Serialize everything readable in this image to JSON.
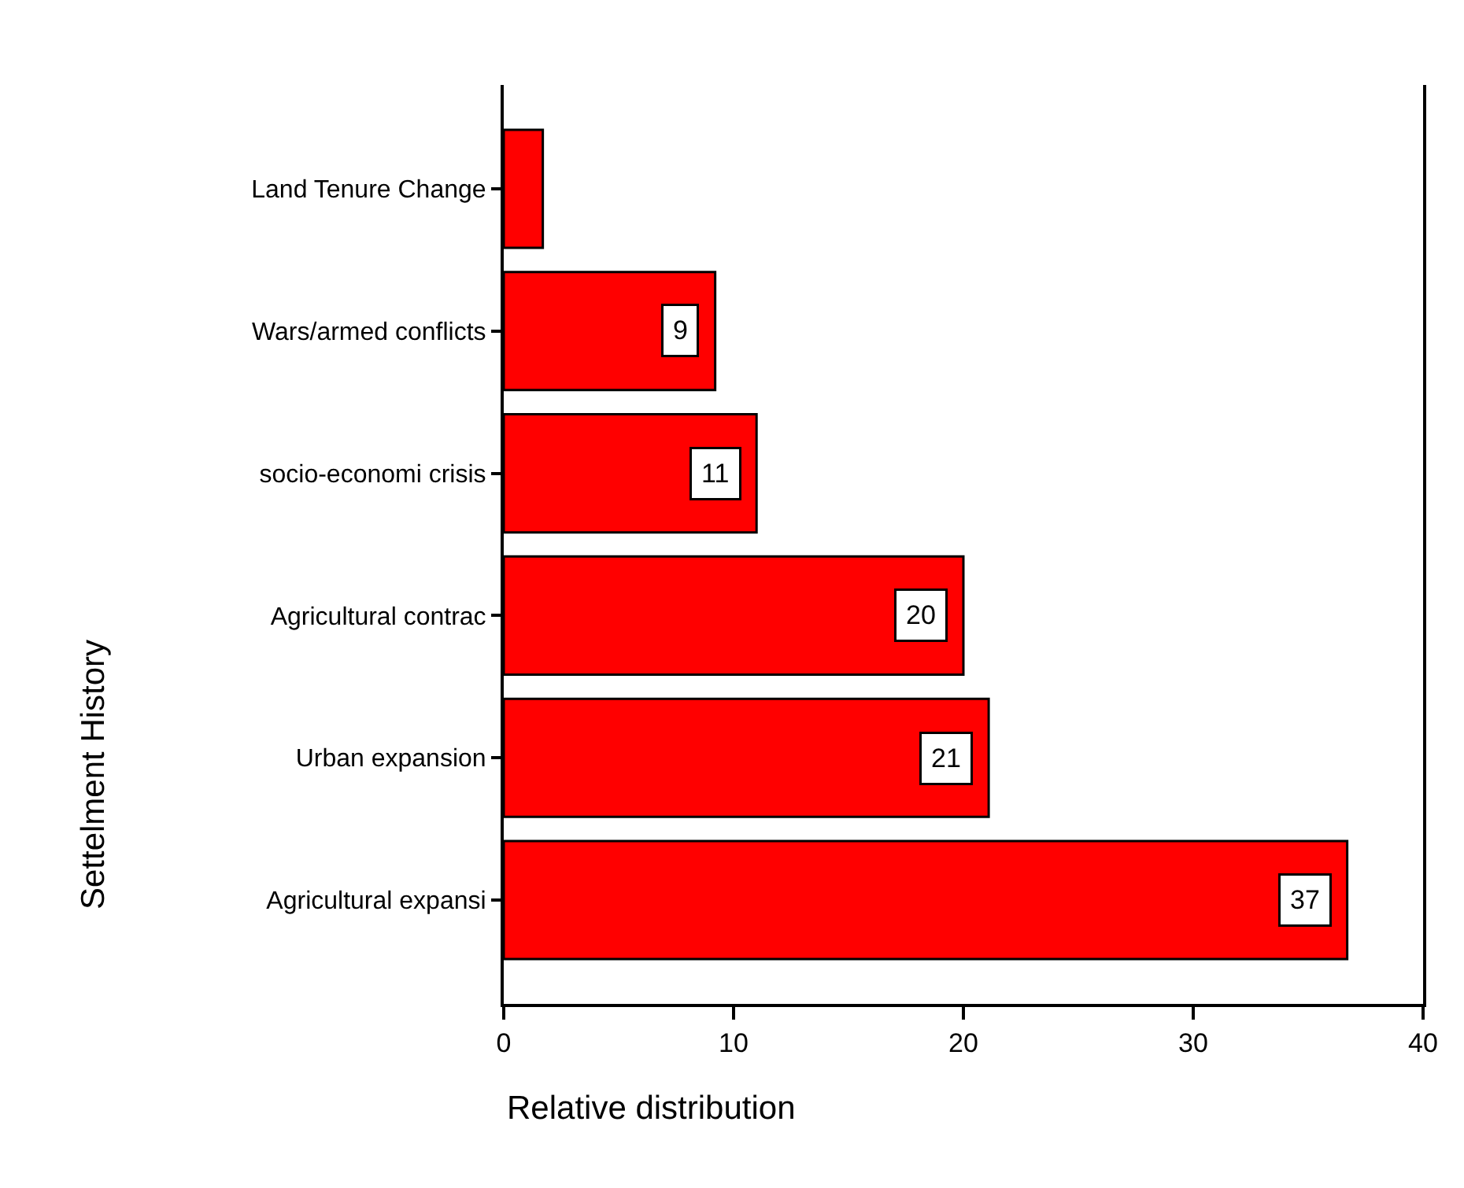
{
  "chart_data": {
    "type": "bar",
    "orientation": "horizontal",
    "xlabel": "Relative distribution",
    "ylabel": "Settelment History",
    "categories": [
      "Land Tenure Change",
      "Wars/armed conflicts",
      "socio-economi crisis",
      "Agricultural contrac",
      "Urban expansion",
      "Agricultural expansi"
    ],
    "values": [
      1.7,
      9.2,
      11.0,
      20.0,
      21.1,
      36.7
    ],
    "value_labels": [
      null,
      "9",
      "11",
      "20",
      "21",
      "37"
    ],
    "color": "#ff0000",
    "xlim": [
      0,
      40
    ],
    "xticks": [
      0,
      10,
      20,
      30,
      40
    ],
    "legend": false
  }
}
